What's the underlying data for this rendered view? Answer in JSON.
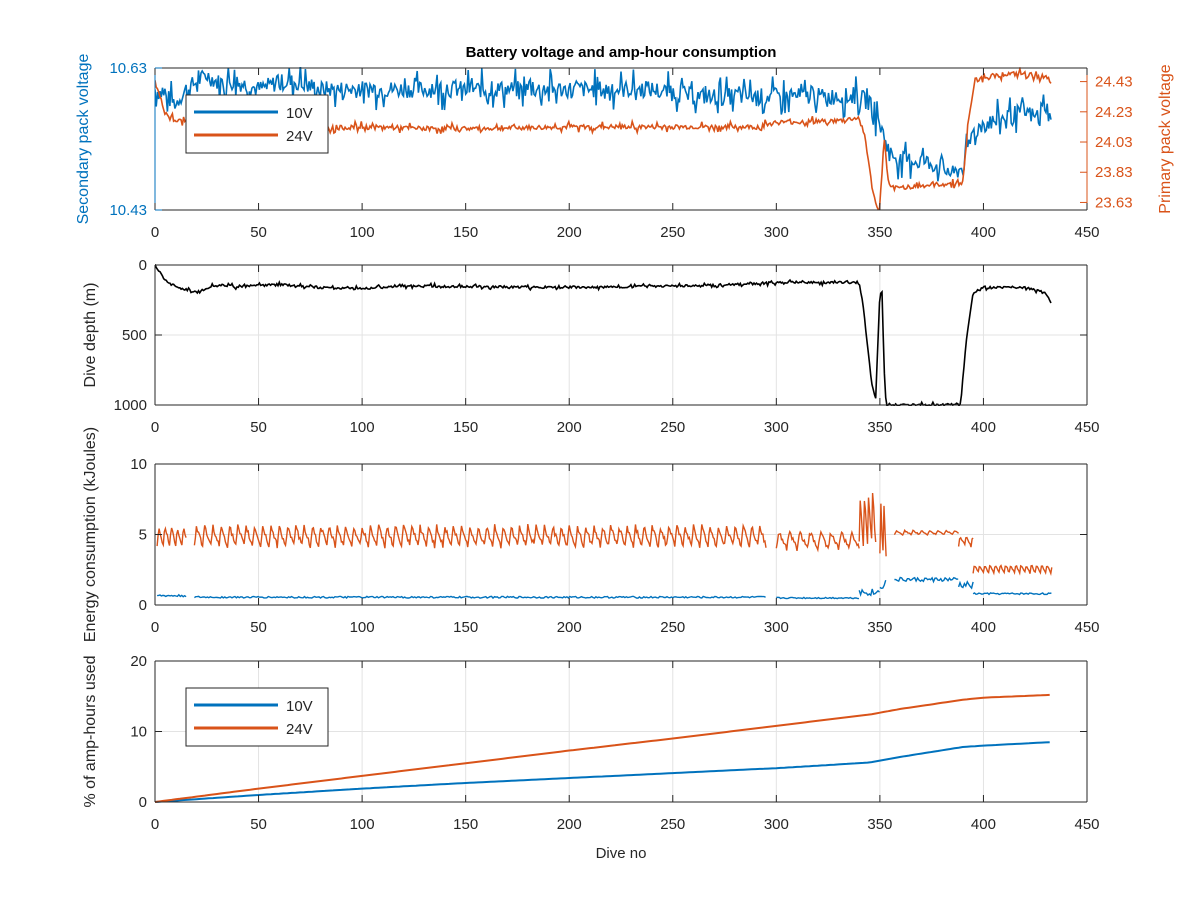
{
  "figure_title": "Battery voltage and amp-hour consumption",
  "colors": {
    "s10V": "#0072BD",
    "s24V": "#D95319",
    "depth": "#000000",
    "grid": "#e3e3e3",
    "axis": "#262626"
  },
  "chart_data": [
    {
      "type": "line",
      "title": "Battery voltage and amp-hour consumption",
      "xlabel": "",
      "ylabel": "Secondary pack voltage",
      "ylabel_right": "Primary pack voltage",
      "xlim": [
        0,
        450
      ],
      "ylim": [
        10.43,
        10.63
      ],
      "ylim_right": [
        23.58,
        24.52
      ],
      "xticks": [
        0,
        50,
        100,
        150,
        200,
        250,
        300,
        350,
        400,
        450
      ],
      "yticks": [
        10.43,
        10.63
      ],
      "yticks_right": [
        23.63,
        23.83,
        24.03,
        24.23,
        24.43
      ],
      "grid": false,
      "legend": {
        "placement": "top-left",
        "entries": [
          "10V",
          "24V"
        ]
      },
      "series": [
        {
          "name": "10V",
          "axis": "left",
          "color": "#0072BD",
          "x": [
            0,
            5,
            10,
            15,
            20,
            25,
            30,
            40,
            50,
            60,
            70,
            80,
            90,
            100,
            120,
            140,
            160,
            180,
            200,
            220,
            240,
            260,
            280,
            300,
            320,
            340,
            345,
            350,
            355,
            360,
            370,
            380,
            385,
            390,
            395,
            400,
            410,
            420,
            425,
            430,
            433
          ],
          "y": [
            10.6,
            10.59,
            10.58,
            10.6,
            10.61,
            10.62,
            10.61,
            10.61,
            10.6,
            10.61,
            10.61,
            10.6,
            10.6,
            10.6,
            10.6,
            10.6,
            10.6,
            10.6,
            10.6,
            10.6,
            10.6,
            10.59,
            10.59,
            10.59,
            10.59,
            10.59,
            10.58,
            10.55,
            10.51,
            10.5,
            10.5,
            10.49,
            10.48,
            10.49,
            10.54,
            10.55,
            10.56,
            10.57,
            10.56,
            10.58,
            10.55
          ],
          "noise": 0.012
        },
        {
          "name": "24V",
          "axis": "right",
          "color": "#D95319",
          "x": [
            0,
            5,
            10,
            20,
            30,
            40,
            50,
            80,
            100,
            130,
            160,
            200,
            250,
            290,
            300,
            330,
            340,
            343,
            346,
            348,
            350,
            352,
            354,
            356,
            360,
            370,
            380,
            390,
            393,
            396,
            400,
            410,
            420,
            425,
            430,
            433
          ],
          "y": [
            24.43,
            24.22,
            24.17,
            24.17,
            24.13,
            24.15,
            24.13,
            24.12,
            24.13,
            24.12,
            24.12,
            24.13,
            24.13,
            24.13,
            24.16,
            24.17,
            24.19,
            24.05,
            23.75,
            23.62,
            23.58,
            24.07,
            23.75,
            23.72,
            23.73,
            23.74,
            23.75,
            23.76,
            24.2,
            24.44,
            24.46,
            24.48,
            24.48,
            24.47,
            24.46,
            24.4
          ],
          "noise": 0.015
        }
      ]
    },
    {
      "type": "line",
      "xlabel": "",
      "ylabel": "Dive depth (m)",
      "xlim": [
        0,
        450
      ],
      "ylim": [
        0,
        1000
      ],
      "y_reversed": true,
      "xticks": [
        0,
        50,
        100,
        150,
        200,
        250,
        300,
        350,
        400,
        450
      ],
      "yticks": [
        0,
        500,
        1000
      ],
      "ytick_labels": [
        "0",
        "500",
        "1000"
      ],
      "grid": true,
      "series": [
        {
          "color": "#000000",
          "x": [
            0,
            2,
            5,
            10,
            20,
            30,
            40,
            60,
            80,
            100,
            120,
            160,
            200,
            240,
            280,
            300,
            320,
            340,
            342,
            346,
            348,
            350,
            351,
            352,
            353,
            355,
            360,
            380,
            389,
            392,
            395,
            400,
            420,
            430,
            433
          ],
          "y": [
            0,
            40,
            110,
            160,
            195,
            140,
            155,
            140,
            160,
            170,
            150,
            155,
            160,
            155,
            140,
            125,
            125,
            125,
            300,
            850,
            950,
            200,
            200,
            700,
            1000,
            995,
            1000,
            1000,
            990,
            500,
            200,
            160,
            160,
            200,
            280
          ],
          "noise": 8
        }
      ]
    },
    {
      "type": "line",
      "xlabel": "",
      "ylabel": "Energy consumption (kJoules)",
      "xlim": [
        0,
        450
      ],
      "ylim": [
        0,
        10
      ],
      "xticks": [
        0,
        50,
        100,
        150,
        200,
        250,
        300,
        350,
        400,
        450
      ],
      "yticks": [
        0,
        5,
        10
      ],
      "grid": true,
      "series": [
        {
          "name": "24V",
          "color": "#D95319",
          "style": "sawtooth",
          "segments": [
            {
              "x0": 1,
              "x1": 15,
              "base": 4.3,
              "amp": 1.3,
              "period": 3
            },
            {
              "x0": 19,
              "x1": 295,
              "base": 4.2,
              "amp": 1.5,
              "period": 4
            },
            {
              "x0": 300,
              "x1": 340,
              "base": 4.0,
              "amp": 1.3,
              "period": 5
            },
            {
              "x0": 340,
              "x1": 348,
              "base": 4.5,
              "amp": 3.6,
              "period": 2
            },
            {
              "x0": 350,
              "x1": 353,
              "base": 3.2,
              "amp": 5.5,
              "period": 1.5
            },
            {
              "x0": 357,
              "x1": 388,
              "base": 5.0,
              "amp": 0.3,
              "period": 4
            },
            {
              "x0": 388,
              "x1": 395,
              "base": 4.2,
              "amp": 0.8,
              "period": 3
            },
            {
              "x0": 395,
              "x1": 433,
              "base": 2.3,
              "amp": 0.6,
              "period": 2.5
            }
          ]
        },
        {
          "name": "10V",
          "color": "#0072BD",
          "style": "noisy",
          "segments": [
            {
              "x0": 1,
              "x1": 15,
              "base": 0.65,
              "amp": 0.15
            },
            {
              "x0": 19,
              "x1": 295,
              "base": 0.55,
              "amp": 0.12
            },
            {
              "x0": 300,
              "x1": 340,
              "base": 0.5,
              "amp": 0.1
            },
            {
              "x0": 340,
              "x1": 350,
              "base": 0.9,
              "amp": 0.5
            },
            {
              "x0": 350,
              "x1": 353,
              "base": 1.5,
              "amp": 0.8
            },
            {
              "x0": 357,
              "x1": 388,
              "base": 1.8,
              "amp": 0.3
            },
            {
              "x0": 388,
              "x1": 395,
              "base": 1.4,
              "amp": 0.5
            },
            {
              "x0": 395,
              "x1": 433,
              "base": 0.8,
              "amp": 0.12
            }
          ]
        }
      ]
    },
    {
      "type": "line",
      "xlabel": "Dive no",
      "ylabel": "% of amp-hours used",
      "xlim": [
        0,
        450
      ],
      "ylim": [
        0,
        20
      ],
      "xticks": [
        0,
        50,
        100,
        150,
        200,
        250,
        300,
        350,
        400,
        450
      ],
      "yticks": [
        0,
        10,
        20
      ],
      "grid": true,
      "legend": {
        "placement": "top-left",
        "entries": [
          "10V",
          "24V"
        ]
      },
      "series": [
        {
          "name": "10V",
          "color": "#0072BD",
          "x": [
            0,
            50,
            100,
            150,
            200,
            250,
            300,
            345,
            360,
            390,
            400,
            433
          ],
          "y": [
            0,
            1,
            1.9,
            2.7,
            3.4,
            4.1,
            4.8,
            5.6,
            6.4,
            7.8,
            8.0,
            8.5
          ]
        },
        {
          "name": "24V",
          "color": "#D95319",
          "x": [
            0,
            50,
            100,
            150,
            200,
            250,
            300,
            345,
            360,
            390,
            400,
            433
          ],
          "y": [
            0,
            1.9,
            3.7,
            5.5,
            7.3,
            9.0,
            10.8,
            12.4,
            13.2,
            14.5,
            14.8,
            15.2
          ]
        }
      ]
    }
  ]
}
